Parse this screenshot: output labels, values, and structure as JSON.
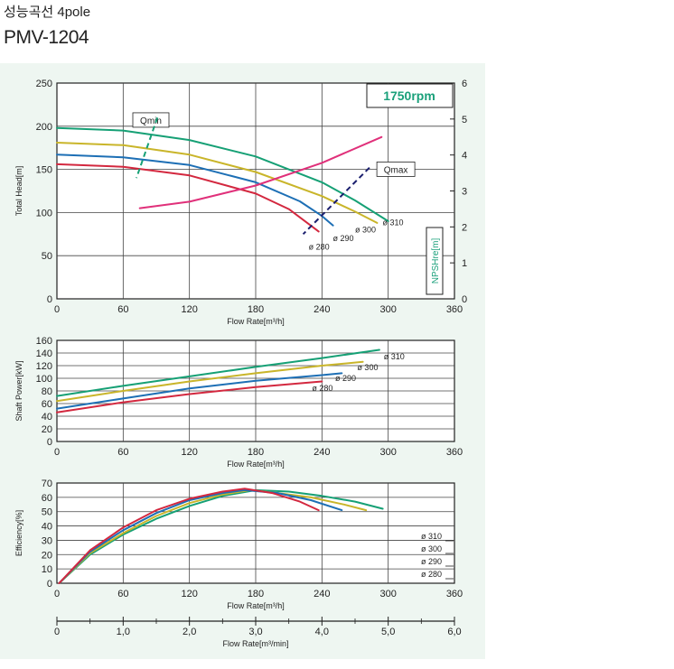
{
  "page": {
    "title_line1": "성능곡선 4pole",
    "title_line2": "PMV-1204"
  },
  "colors": {
    "d310": "#16a075",
    "d300": "#c9b52a",
    "d290": "#1d6fb5",
    "d280": "#d3283f",
    "npsh": "#e0307a",
    "qline": "#1b1f6e",
    "panel_bg": "#eef6f1",
    "speed_text": "#1aa07a"
  },
  "chart_data": [
    {
      "type": "line",
      "ylabel": "Total Head[m]",
      "xlabel": "Flow Rate[m³/h]",
      "xlim": [
        0,
        360
      ],
      "ylim": [
        0,
        250
      ],
      "xticks": [
        "0",
        "60",
        "120",
        "180",
        "240",
        "300",
        "360"
      ],
      "yticks": [
        "0",
        "50",
        "100",
        "150",
        "200",
        "250"
      ],
      "y2label": "NPSHre[m]",
      "y2lim": [
        0,
        6
      ],
      "y2ticks": [
        "0",
        "1",
        "2",
        "3",
        "4",
        "5",
        "6"
      ],
      "speed_label": "1750rpm",
      "grid": true,
      "series": [
        {
          "name": "ø 310",
          "color_key": "d310",
          "x": [
            0,
            60,
            120,
            180,
            240,
            270,
            300
          ],
          "y": [
            198,
            195,
            184,
            165,
            135,
            114,
            90
          ]
        },
        {
          "name": "ø 300",
          "color_key": "d300",
          "x": [
            0,
            60,
            120,
            180,
            240,
            270,
            290
          ],
          "y": [
            181,
            178,
            167,
            147,
            119,
            101,
            88
          ]
        },
        {
          "name": "ø 290",
          "color_key": "d290",
          "x": [
            0,
            60,
            120,
            180,
            220,
            240,
            250
          ],
          "y": [
            167,
            164,
            155,
            135,
            113,
            96,
            85
          ]
        },
        {
          "name": "ø 280",
          "color_key": "d280",
          "x": [
            0,
            60,
            120,
            180,
            210,
            237
          ],
          "y": [
            156,
            153,
            143,
            122,
            104,
            78
          ]
        },
        {
          "name": "NPSHre",
          "axis": "right",
          "color_key": "npsh",
          "x": [
            75,
            120,
            180,
            240,
            294
          ],
          "y": [
            2.52,
            2.7,
            3.15,
            3.78,
            4.5
          ]
        }
      ],
      "annotations": [
        {
          "text": "Qmin",
          "x": 72,
          "y": 203
        },
        {
          "text": "Qmax",
          "x": 293,
          "y": 146
        },
        {
          "text": "ø 310",
          "x": 295,
          "y": 85
        },
        {
          "text": "ø 300",
          "x": 270,
          "y": 77
        },
        {
          "text": "ø 290",
          "x": 250,
          "y": 67
        },
        {
          "text": "ø 280",
          "x": 228,
          "y": 57
        }
      ]
    },
    {
      "type": "line",
      "ylabel": "Shaft Power[kW]",
      "xlabel": "Flow Rate[m³/h]",
      "xlim": [
        0,
        360
      ],
      "ylim": [
        0,
        160
      ],
      "xticks": [
        "0",
        "60",
        "120",
        "180",
        "240",
        "300",
        "360"
      ],
      "yticks": [
        "0",
        "20",
        "40",
        "60",
        "80",
        "100",
        "120",
        "140",
        "160"
      ],
      "grid": true,
      "series": [
        {
          "name": "ø 310",
          "color_key": "d310",
          "x": [
            0,
            60,
            120,
            180,
            240,
            292
          ],
          "y": [
            72,
            88,
            103,
            118,
            132,
            145
          ]
        },
        {
          "name": "ø 300",
          "color_key": "d300",
          "x": [
            0,
            60,
            120,
            180,
            240,
            277
          ],
          "y": [
            64,
            80,
            95,
            108,
            120,
            126
          ]
        },
        {
          "name": "ø 290",
          "color_key": "d290",
          "x": [
            0,
            60,
            120,
            180,
            240,
            258
          ],
          "y": [
            52,
            68,
            84,
            96,
            105,
            108
          ]
        },
        {
          "name": "ø 280",
          "color_key": "d280",
          "x": [
            0,
            60,
            120,
            180,
            240
          ],
          "y": [
            46,
            62,
            75,
            86,
            95
          ]
        }
      ],
      "annotations": [
        {
          "text": "ø 310",
          "x": 296,
          "y": 130
        },
        {
          "text": "ø 300",
          "x": 272,
          "y": 113
        },
        {
          "text": "ø 290",
          "x": 252,
          "y": 96
        },
        {
          "text": "ø 280",
          "x": 231,
          "y": 80
        }
      ]
    },
    {
      "type": "line",
      "ylabel": "Efficiency[%]",
      "xlabel": "Flow Rate[m³/h]",
      "xlim": [
        0,
        360
      ],
      "ylim": [
        0,
        70
      ],
      "xticks": [
        "0",
        "60",
        "120",
        "180",
        "240",
        "300",
        "360"
      ],
      "yticks": [
        "0",
        "10",
        "20",
        "30",
        "40",
        "50",
        "60",
        "70"
      ],
      "grid": true,
      "series": [
        {
          "name": "ø 310",
          "color_key": "d310",
          "x": [
            2,
            30,
            60,
            90,
            120,
            150,
            180,
            210,
            240,
            270,
            295
          ],
          "y": [
            0,
            20,
            34,
            45,
            54,
            61,
            65,
            64,
            61,
            57,
            52
          ]
        },
        {
          "name": "ø 300",
          "color_key": "d300",
          "x": [
            2,
            30,
            60,
            90,
            120,
            150,
            175,
            200,
            230,
            260,
            280
          ],
          "y": [
            0,
            21,
            35,
            47,
            56,
            62,
            65,
            63,
            60,
            55,
            51
          ]
        },
        {
          "name": "ø 290",
          "color_key": "d290",
          "x": [
            2,
            30,
            60,
            90,
            120,
            150,
            170,
            200,
            230,
            258
          ],
          "y": [
            0,
            22,
            37,
            49,
            58,
            63,
            65,
            63,
            58,
            51
          ]
        },
        {
          "name": "ø 280",
          "color_key": "d280",
          "x": [
            2,
            30,
            60,
            90,
            120,
            150,
            170,
            195,
            220,
            237
          ],
          "y": [
            0,
            23,
            39,
            51,
            59,
            64,
            66,
            63,
            57,
            51
          ]
        }
      ],
      "legend": [
        "ø 310",
        "ø 300",
        "ø 290",
        "ø 280"
      ],
      "legend_position": "right"
    },
    {
      "type": "axis",
      "xlabel": "Flow Rate[m³/min]",
      "xlim": [
        0,
        6
      ],
      "xticks": [
        "0",
        "1,0",
        "2,0",
        "3,0",
        "4,0",
        "5,0",
        "6,0"
      ]
    }
  ]
}
